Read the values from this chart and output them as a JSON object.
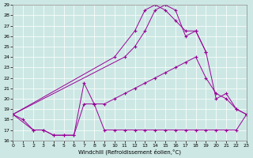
{
  "xlabel": "Windchill (Refroidissement éolien,°C)",
  "bg_color": "#cde8e4",
  "line_color": "#990099",
  "grid_color": "#ffffff",
  "xlim": [
    0,
    23
  ],
  "ylim": [
    16,
    29
  ],
  "xticks": [
    0,
    1,
    2,
    3,
    4,
    5,
    6,
    7,
    8,
    9,
    10,
    11,
    12,
    13,
    14,
    15,
    16,
    17,
    18,
    19,
    20,
    21,
    22,
    23
  ],
  "yticks": [
    16,
    17,
    18,
    19,
    20,
    21,
    22,
    23,
    24,
    25,
    26,
    27,
    28,
    29
  ],
  "lines": [
    {
      "x": [
        0,
        1,
        2,
        3,
        4,
        5,
        6,
        7,
        8,
        9,
        10,
        11,
        12,
        13,
        14,
        15,
        16,
        17,
        18,
        19,
        20,
        21,
        22,
        23
      ],
      "y": [
        18.5,
        18.0,
        17.0,
        17.0,
        16.5,
        16.5,
        16.5,
        21.5,
        19.5,
        17.0,
        17.0,
        17.0,
        17.0,
        17.0,
        17.0,
        17.0,
        17.0,
        17.0,
        17.0,
        17.0,
        17.0,
        17.0,
        17.0,
        18.5
      ]
    },
    {
      "x": [
        0,
        2,
        3,
        4,
        5,
        6,
        7,
        8,
        9,
        10,
        11,
        12,
        13,
        14,
        15,
        16,
        17,
        18,
        19,
        20,
        21,
        22,
        23
      ],
      "y": [
        18.5,
        17.0,
        17.0,
        16.5,
        16.5,
        16.5,
        19.5,
        19.5,
        19.5,
        20.0,
        20.5,
        21.0,
        21.5,
        22.0,
        22.5,
        23.0,
        23.5,
        24.0,
        22.0,
        20.5,
        20.0,
        19.0,
        18.5
      ]
    },
    {
      "x": [
        0,
        11,
        12,
        13,
        14,
        15,
        16,
        17,
        18,
        19,
        20,
        21,
        22,
        23
      ],
      "y": [
        18.5,
        24.0,
        25.0,
        26.5,
        28.5,
        29.0,
        28.5,
        26.0,
        26.5,
        24.5,
        20.0,
        20.5,
        19.0,
        18.5
      ]
    },
    {
      "x": [
        0,
        10,
        12,
        13,
        14,
        15,
        16,
        17,
        18,
        19
      ],
      "y": [
        18.5,
        24.0,
        26.5,
        28.5,
        29.0,
        28.5,
        27.5,
        26.5,
        26.5,
        24.5
      ]
    }
  ],
  "figsize": [
    3.2,
    2.0
  ],
  "dpi": 100
}
